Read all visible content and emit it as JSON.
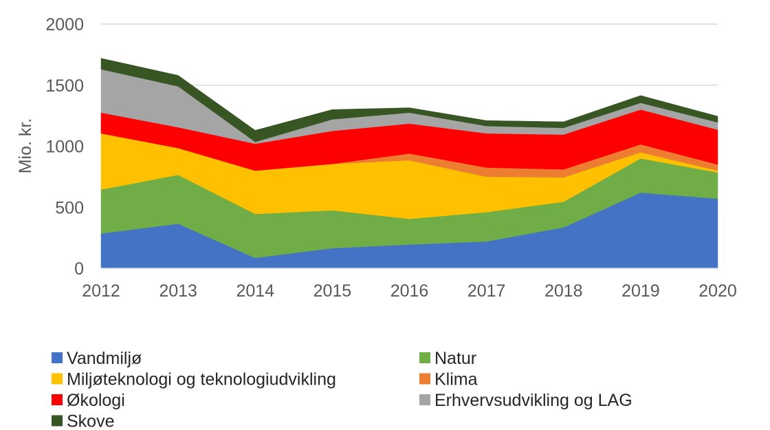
{
  "chart_data": {
    "type": "area",
    "stacked": true,
    "title": "",
    "xlabel": "",
    "ylabel": "Mio. kr.",
    "x": [
      2012,
      2013,
      2014,
      2015,
      2016,
      2017,
      2018,
      2019,
      2020
    ],
    "ylim": [
      0,
      2000
    ],
    "yticks": [
      0,
      500,
      1000,
      1500,
      2000
    ],
    "grid": true,
    "legend_position": "bottom",
    "series": [
      {
        "name": "Vandmiljø",
        "color": "#4472C4",
        "values": [
          285,
          365,
          85,
          165,
          195,
          220,
          335,
          620,
          570
        ]
      },
      {
        "name": "Natur",
        "color": "#70AD47",
        "values": [
          360,
          400,
          360,
          310,
          210,
          240,
          210,
          280,
          215
        ]
      },
      {
        "name": "Miljøteknologi og teknologiudvikling",
        "color": "#FFC000",
        "values": [
          460,
          220,
          355,
          380,
          480,
          290,
          200,
          50,
          15
        ]
      },
      {
        "name": "Klima",
        "color": "#ED7D31",
        "values": [
          0,
          0,
          0,
          0,
          55,
          75,
          65,
          65,
          50
        ]
      },
      {
        "name": "Økologi",
        "color": "#FF0000",
        "values": [
          170,
          170,
          220,
          270,
          245,
          280,
          285,
          285,
          285
        ]
      },
      {
        "name": "Erhvervsudvikling og LAG",
        "color": "#A5A5A5",
        "values": [
          355,
          335,
          15,
          95,
          90,
          60,
          55,
          55,
          60
        ]
      },
      {
        "name": "Skove",
        "color": "#375623",
        "values": [
          90,
          90,
          95,
          80,
          40,
          45,
          50,
          60,
          50
        ]
      }
    ]
  }
}
